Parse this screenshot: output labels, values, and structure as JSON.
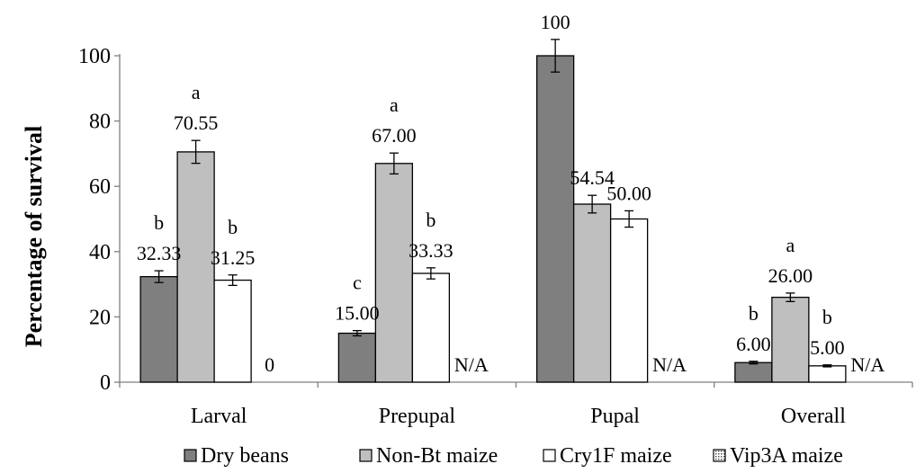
{
  "chart_data": {
    "type": "bar",
    "title": "",
    "ylabel": "Percentage of survival",
    "xlabel": "",
    "ylim": [
      0,
      100
    ],
    "yticks": [
      0,
      20,
      40,
      60,
      80,
      100
    ],
    "grid": false,
    "legend_position": "bottom",
    "categories": [
      "Larval",
      "Prepupal",
      "Pupal",
      "Overall"
    ],
    "series": [
      {
        "name": "Dry beans",
        "color": "#7f7f7f",
        "pattern": "solid",
        "values": [
          32.33,
          15.0,
          100,
          6.0
        ],
        "errors": [
          1.8,
          0.8,
          5.0,
          0.4
        ],
        "labels": [
          "32.33",
          "15.00",
          "100",
          "6.00"
        ],
        "letters": [
          "b",
          "c",
          "",
          "b"
        ]
      },
      {
        "name": "Non-Bt maize",
        "color": "#bfbfbf",
        "pattern": "solid",
        "values": [
          70.55,
          67.0,
          54.54,
          26.0
        ],
        "errors": [
          3.5,
          3.2,
          2.7,
          1.3
        ],
        "labels": [
          "70.55",
          "67.00",
          "54.54",
          "26.00"
        ],
        "letters": [
          "a",
          "a",
          "",
          "a"
        ]
      },
      {
        "name": "Cry1F maize",
        "color": "#ffffff",
        "pattern": "solid",
        "values": [
          31.25,
          33.33,
          50.0,
          5.0
        ],
        "errors": [
          1.6,
          1.7,
          2.5,
          0.3
        ],
        "labels": [
          "31.25",
          "33.33",
          "50.00",
          "5.00"
        ],
        "letters": [
          "b",
          "b",
          "",
          "b"
        ]
      },
      {
        "name": "Vip3A maize",
        "color": "#ffffff",
        "pattern": "dotted",
        "values": [
          0,
          null,
          null,
          null
        ],
        "errors": [
          0,
          0,
          0,
          0
        ],
        "labels": [
          "0",
          "N/A",
          "N/A",
          "N/A"
        ],
        "letters": [
          "",
          "",
          "",
          ""
        ]
      }
    ]
  }
}
